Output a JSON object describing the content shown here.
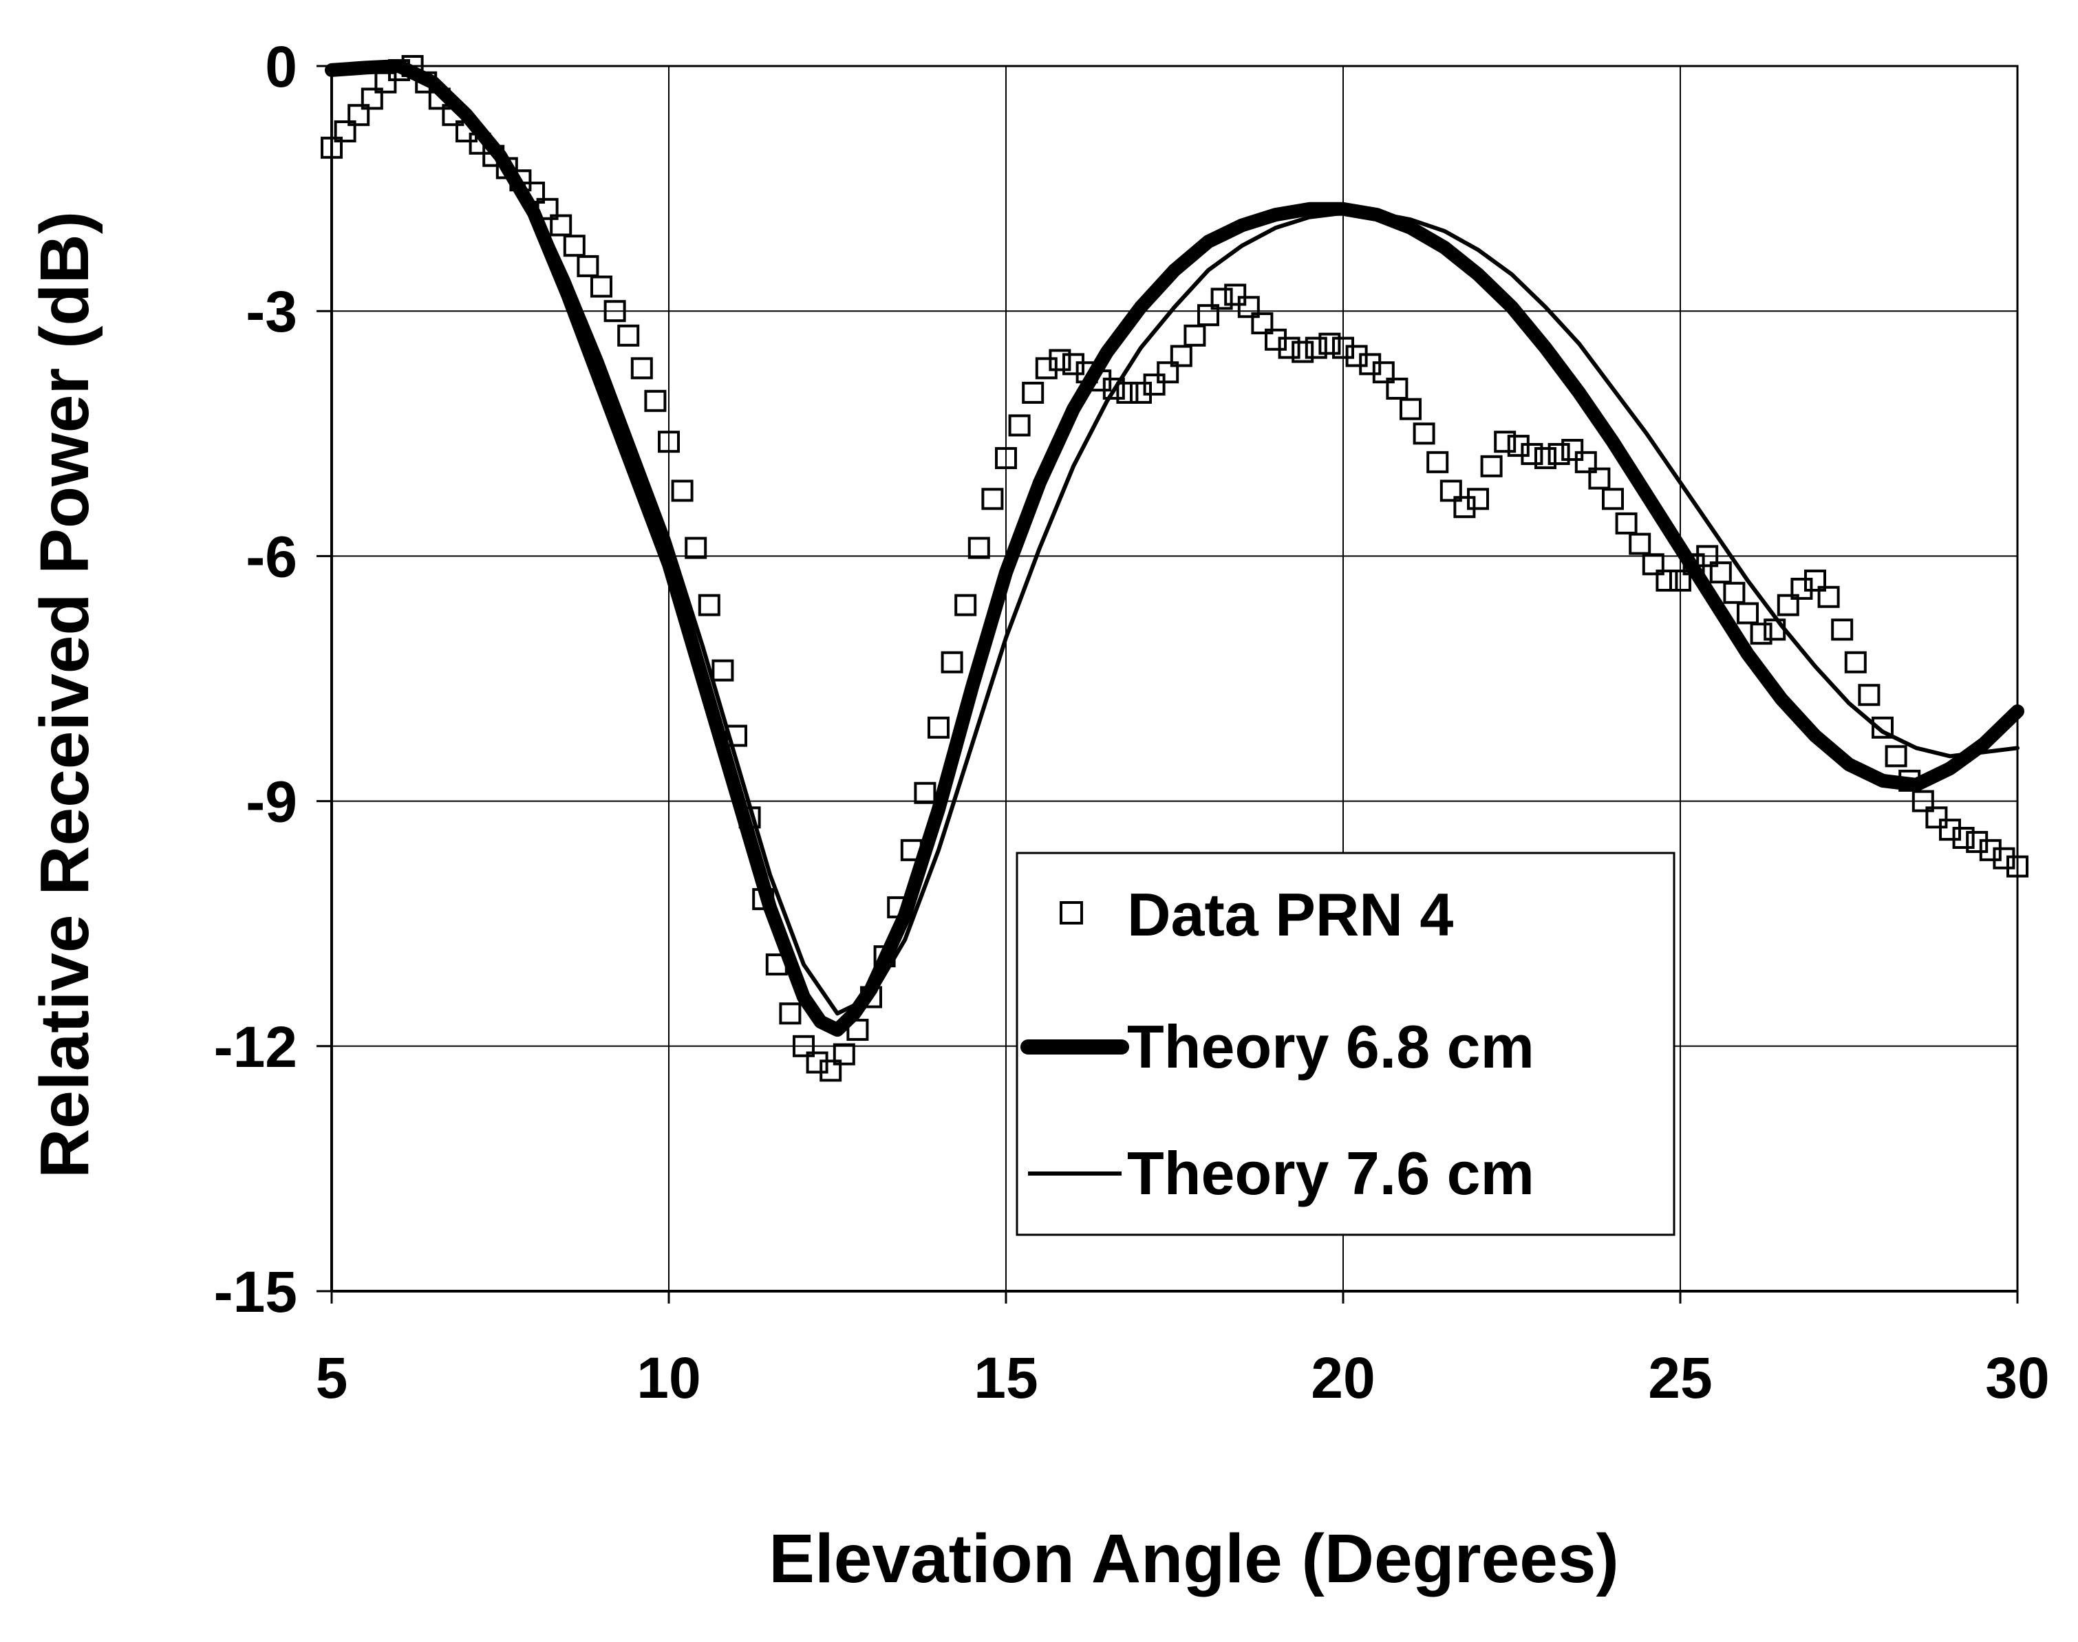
{
  "chart_data": {
    "type": "line",
    "title": "",
    "xlabel": "Elevation Angle (Degrees)",
    "ylabel": "Relative Received Power (dB)",
    "xlim": [
      5,
      30
    ],
    "ylim": [
      -15,
      0
    ],
    "xticks": [
      5,
      10,
      15,
      20,
      25,
      30
    ],
    "yticks": [
      0,
      -3,
      -6,
      -9,
      -12,
      -15
    ],
    "xtick_labels": [
      "5",
      "10",
      "15",
      "20",
      "25",
      "30"
    ],
    "ytick_labels": [
      "0",
      "-3",
      "-6",
      "-9",
      "-12",
      "-15"
    ],
    "grid": true,
    "legend_position": "bottom-center",
    "series": [
      {
        "name": "Data PRN 4",
        "style": "square-markers",
        "color": "#000000",
        "x": [
          5.0,
          5.2,
          5.4,
          5.6,
          5.8,
          6.0,
          6.2,
          6.4,
          6.6,
          6.8,
          7.0,
          7.2,
          7.4,
          7.6,
          7.8,
          8.0,
          8.2,
          8.4,
          8.6,
          8.8,
          9.0,
          9.2,
          9.4,
          9.6,
          9.8,
          10.0,
          10.2,
          10.4,
          10.6,
          10.8,
          11.0,
          11.2,
          11.4,
          11.6,
          11.8,
          12.0,
          12.2,
          12.4,
          12.6,
          12.8,
          13.0,
          13.2,
          13.4,
          13.6,
          13.8,
          14.0,
          14.2,
          14.4,
          14.6,
          14.8,
          15.0,
          15.2,
          15.4,
          15.6,
          15.8,
          16.0,
          16.2,
          16.4,
          16.6,
          16.8,
          17.0,
          17.2,
          17.4,
          17.6,
          17.8,
          18.0,
          18.2,
          18.4,
          18.6,
          18.8,
          19.0,
          19.2,
          19.4,
          19.6,
          19.8,
          20.0,
          20.2,
          20.4,
          20.6,
          20.8,
          21.0,
          21.2,
          21.4,
          21.6,
          21.8,
          22.0,
          22.2,
          22.4,
          22.6,
          22.8,
          23.0,
          23.2,
          23.4,
          23.6,
          23.8,
          24.0,
          24.2,
          24.4,
          24.6,
          24.8,
          25.0,
          25.2,
          25.4,
          25.6,
          25.8,
          26.0,
          26.2,
          26.4,
          26.6,
          26.8,
          27.0,
          27.2,
          27.4,
          27.6,
          27.8,
          28.0,
          28.2,
          28.4,
          28.6,
          28.8,
          29.0,
          29.2,
          29.4,
          29.6,
          29.8,
          30.0
        ],
        "y": [
          -1.0,
          -0.8,
          -0.6,
          -0.4,
          -0.2,
          -0.05,
          0.0,
          -0.2,
          -0.4,
          -0.6,
          -0.8,
          -0.95,
          -1.1,
          -1.25,
          -1.4,
          -1.55,
          -1.75,
          -1.95,
          -2.2,
          -2.45,
          -2.7,
          -3.0,
          -3.3,
          -3.7,
          -4.1,
          -4.6,
          -5.2,
          -5.9,
          -6.6,
          -7.4,
          -8.2,
          -9.2,
          -10.2,
          -11.0,
          -11.6,
          -12.0,
          -12.2,
          -12.3,
          -12.1,
          -11.8,
          -11.4,
          -10.9,
          -10.3,
          -9.6,
          -8.9,
          -8.1,
          -7.3,
          -6.6,
          -5.9,
          -5.3,
          -4.8,
          -4.4,
          -4.0,
          -3.7,
          -3.6,
          -3.65,
          -3.75,
          -3.85,
          -3.95,
          -4.0,
          -4.0,
          -3.9,
          -3.75,
          -3.55,
          -3.3,
          -3.05,
          -2.85,
          -2.8,
          -2.95,
          -3.15,
          -3.35,
          -3.45,
          -3.5,
          -3.45,
          -3.4,
          -3.45,
          -3.55,
          -3.65,
          -3.75,
          -3.95,
          -4.2,
          -4.5,
          -4.85,
          -5.2,
          -5.4,
          -5.3,
          -4.9,
          -4.6,
          -4.65,
          -4.75,
          -4.8,
          -4.75,
          -4.7,
          -4.85,
          -5.05,
          -5.3,
          -5.6,
          -5.85,
          -6.1,
          -6.3,
          -6.3,
          -6.1,
          -6.0,
          -6.2,
          -6.45,
          -6.7,
          -6.95,
          -6.9,
          -6.6,
          -6.4,
          -6.3,
          -6.5,
          -6.9,
          -7.3,
          -7.7,
          -8.1,
          -8.45,
          -8.75,
          -9.0,
          -9.2,
          -9.35,
          -9.45,
          -9.5,
          -9.6,
          -9.7,
          -9.8
        ]
      },
      {
        "name": "Theory 6.8 cm",
        "style": "thick-line",
        "color": "#000000",
        "x": [
          5.0,
          5.5,
          6.0,
          6.5,
          7.0,
          7.5,
          8.0,
          8.5,
          9.0,
          9.5,
          10.0,
          10.5,
          11.0,
          11.5,
          12.0,
          12.25,
          12.5,
          12.75,
          13.0,
          13.5,
          14.0,
          14.5,
          15.0,
          15.5,
          16.0,
          16.5,
          17.0,
          17.5,
          18.0,
          18.5,
          19.0,
          19.5,
          20.0,
          20.5,
          21.0,
          21.5,
          22.0,
          22.5,
          23.0,
          23.5,
          24.0,
          24.5,
          25.0,
          25.5,
          26.0,
          26.5,
          27.0,
          27.5,
          28.0,
          28.5,
          29.0,
          29.5,
          30.0
        ],
        "y": [
          -0.05,
          -0.02,
          0.0,
          -0.2,
          -0.6,
          -1.1,
          -1.8,
          -2.8,
          -3.9,
          -5.0,
          -6.1,
          -7.5,
          -8.9,
          -10.3,
          -11.4,
          -11.7,
          -11.8,
          -11.6,
          -11.3,
          -10.4,
          -9.1,
          -7.6,
          -6.2,
          -5.1,
          -4.2,
          -3.5,
          -2.95,
          -2.5,
          -2.15,
          -1.95,
          -1.82,
          -1.75,
          -1.75,
          -1.82,
          -1.98,
          -2.22,
          -2.55,
          -2.95,
          -3.45,
          -4.0,
          -4.6,
          -5.25,
          -5.9,
          -6.55,
          -7.2,
          -7.75,
          -8.2,
          -8.55,
          -8.75,
          -8.8,
          -8.6,
          -8.3,
          -7.9
        ]
      },
      {
        "name": "Theory 7.6 cm",
        "style": "thin-line",
        "color": "#000000",
        "x": [
          5.0,
          5.5,
          6.0,
          6.5,
          7.0,
          7.5,
          8.0,
          8.5,
          9.0,
          9.5,
          10.0,
          10.5,
          11.0,
          11.5,
          12.0,
          12.5,
          13.0,
          13.5,
          14.0,
          14.5,
          15.0,
          15.5,
          16.0,
          16.5,
          17.0,
          17.5,
          18.0,
          18.5,
          19.0,
          19.5,
          20.0,
          20.5,
          21.0,
          21.5,
          22.0,
          22.5,
          23.0,
          23.5,
          24.0,
          24.5,
          25.0,
          25.5,
          26.0,
          26.5,
          27.0,
          27.5,
          28.0,
          28.5,
          29.0,
          29.5,
          30.0
        ],
        "y": [
          -0.05,
          -0.02,
          0.0,
          -0.2,
          -0.55,
          -1.05,
          -1.7,
          -2.6,
          -3.6,
          -4.7,
          -5.8,
          -7.1,
          -8.5,
          -9.9,
          -11.0,
          -11.6,
          -11.4,
          -10.7,
          -9.6,
          -8.3,
          -7.0,
          -5.9,
          -4.9,
          -4.1,
          -3.45,
          -2.95,
          -2.5,
          -2.2,
          -1.98,
          -1.85,
          -1.8,
          -1.8,
          -1.88,
          -2.02,
          -2.25,
          -2.55,
          -2.95,
          -3.4,
          -3.95,
          -4.5,
          -5.1,
          -5.7,
          -6.3,
          -6.85,
          -7.35,
          -7.8,
          -8.15,
          -8.35,
          -8.45,
          -8.4,
          -8.35
        ]
      }
    ]
  }
}
